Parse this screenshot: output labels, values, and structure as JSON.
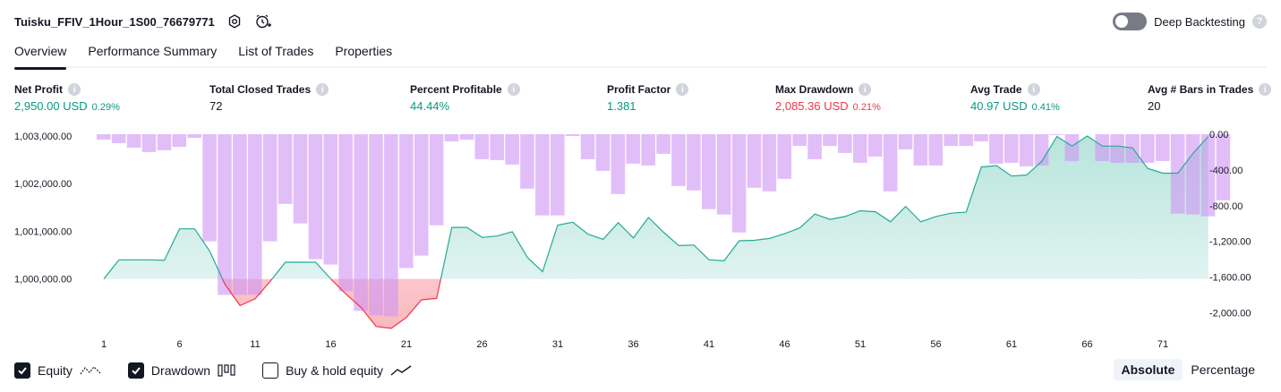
{
  "header": {
    "title": "Tuisku_FFIV_1Hour_1S00_76679771",
    "deep_backtesting_label": "Deep Backtesting",
    "deep_backtesting_on": false,
    "help_glyph": "?"
  },
  "tabs": [
    {
      "label": "Overview",
      "active": true
    },
    {
      "label": "Performance Summary",
      "active": false
    },
    {
      "label": "List of Trades",
      "active": false
    },
    {
      "label": "Properties",
      "active": false
    }
  ],
  "metrics": [
    {
      "label": "Net Profit",
      "value": "2,950.00 USD",
      "pct": "0.29%",
      "color": "#089981"
    },
    {
      "label": "Total Closed Trades",
      "value": "72",
      "pct": "",
      "color": "#131722"
    },
    {
      "label": "Percent Profitable",
      "value": "44.44%",
      "pct": "",
      "color": "#089981"
    },
    {
      "label": "Profit Factor",
      "value": "1.381",
      "pct": "",
      "color": "#089981"
    },
    {
      "label": "Max Drawdown",
      "value": "2,085.36 USD",
      "pct": "0.21%",
      "color": "#f23645"
    },
    {
      "label": "Avg Trade",
      "value": "40.97 USD",
      "pct": "0.41%",
      "color": "#089981"
    },
    {
      "label": "Avg # Bars in Trades",
      "value": "20",
      "pct": "",
      "color": "#131722"
    }
  ],
  "chart_data": {
    "type": "bar",
    "left_axis_ticks": [
      "1,003,000.00",
      "1,002,000.00",
      "1,001,000.00",
      "1,000,000.00"
    ],
    "left_axis_values": [
      1003000,
      1002000,
      1001000,
      1000000
    ],
    "right_axis_ticks": [
      "0.00",
      "-400.00",
      "-800.00",
      "-1,200.00",
      "-1,600.00",
      "-2,000.00"
    ],
    "right_axis_values": [
      0,
      -400,
      -800,
      -1200,
      -1600,
      -2000
    ],
    "x_tick_labels": [
      "1",
      "6",
      "11",
      "16",
      "21",
      "26",
      "31",
      "36",
      "41",
      "46",
      "51",
      "56",
      "61",
      "66",
      "71"
    ],
    "x_tick_values": [
      1,
      6,
      11,
      16,
      21,
      26,
      31,
      36,
      41,
      46,
      51,
      56,
      61,
      66,
      71
    ],
    "equity_baseline": 1000000,
    "equity": [
      1000000,
      1000400,
      1000400,
      1000400,
      1000390,
      1001050,
      1001050,
      1000580,
      999890,
      999440,
      999580,
      999950,
      1000350,
      1000350,
      1000350,
      1000000,
      999680,
      999400,
      999000,
      998960,
      999190,
      999560,
      999590,
      1001080,
      1001080,
      1000870,
      1000900,
      1000990,
      1000450,
      1000150,
      1001130,
      1001190,
      1000940,
      1000830,
      1001180,
      1000860,
      1001290,
      1000980,
      1000700,
      1000710,
      1000400,
      1000380,
      1000800,
      1000810,
      1000850,
      1000950,
      1001070,
      1001360,
      1001250,
      1001310,
      1001430,
      1001410,
      1001200,
      1001520,
      1001200,
      1001310,
      1001380,
      1001400,
      1002350,
      1002380,
      1002160,
      1002180,
      1002470,
      1002990,
      1002790,
      1003000,
      1002790,
      1002790,
      1002750,
      1002320,
      1002220,
      1002220,
      1002640,
      1002990
    ],
    "drawdown": [
      -60,
      -100,
      -150,
      -200,
      -180,
      -140,
      -40,
      -1200,
      -1800,
      -1800,
      -1800,
      -1200,
      -780,
      -1000,
      -1400,
      -1460,
      -1760,
      -1980,
      -2030,
      -2040,
      -1500,
      -1360,
      -1020,
      -80,
      -60,
      -280,
      -290,
      -340,
      -610,
      -910,
      -910,
      -20,
      -280,
      -410,
      -670,
      -330,
      -350,
      -220,
      -580,
      -630,
      -840,
      -900,
      -1100,
      -600,
      -640,
      -500,
      -130,
      -280,
      -130,
      -210,
      -320,
      -250,
      -640,
      -170,
      -350,
      -350,
      -130,
      -130,
      -80,
      -330,
      -320,
      -360,
      -350,
      -10,
      -300,
      0,
      -300,
      -320,
      -320,
      -320,
      -300,
      -890,
      -900,
      -920,
      -740
    ]
  },
  "legend": {
    "equity": {
      "label": "Equity",
      "checked": true
    },
    "drawdown": {
      "label": "Drawdown",
      "checked": true
    },
    "buy_hold": {
      "label": "Buy & hold equity",
      "checked": false
    }
  },
  "mode_toggle": {
    "absolute": "Absolute",
    "percentage": "Percentage",
    "selected": "absolute"
  },
  "colors": {
    "equity_line": "#22ab94",
    "equity_fill": "#22ab94",
    "loss_line": "#f23645",
    "drawdown_bar": "#ce93f5",
    "axis_text": "#131722"
  },
  "icons": {
    "settings": "gear-icon",
    "alert": "add-alert-icon"
  }
}
